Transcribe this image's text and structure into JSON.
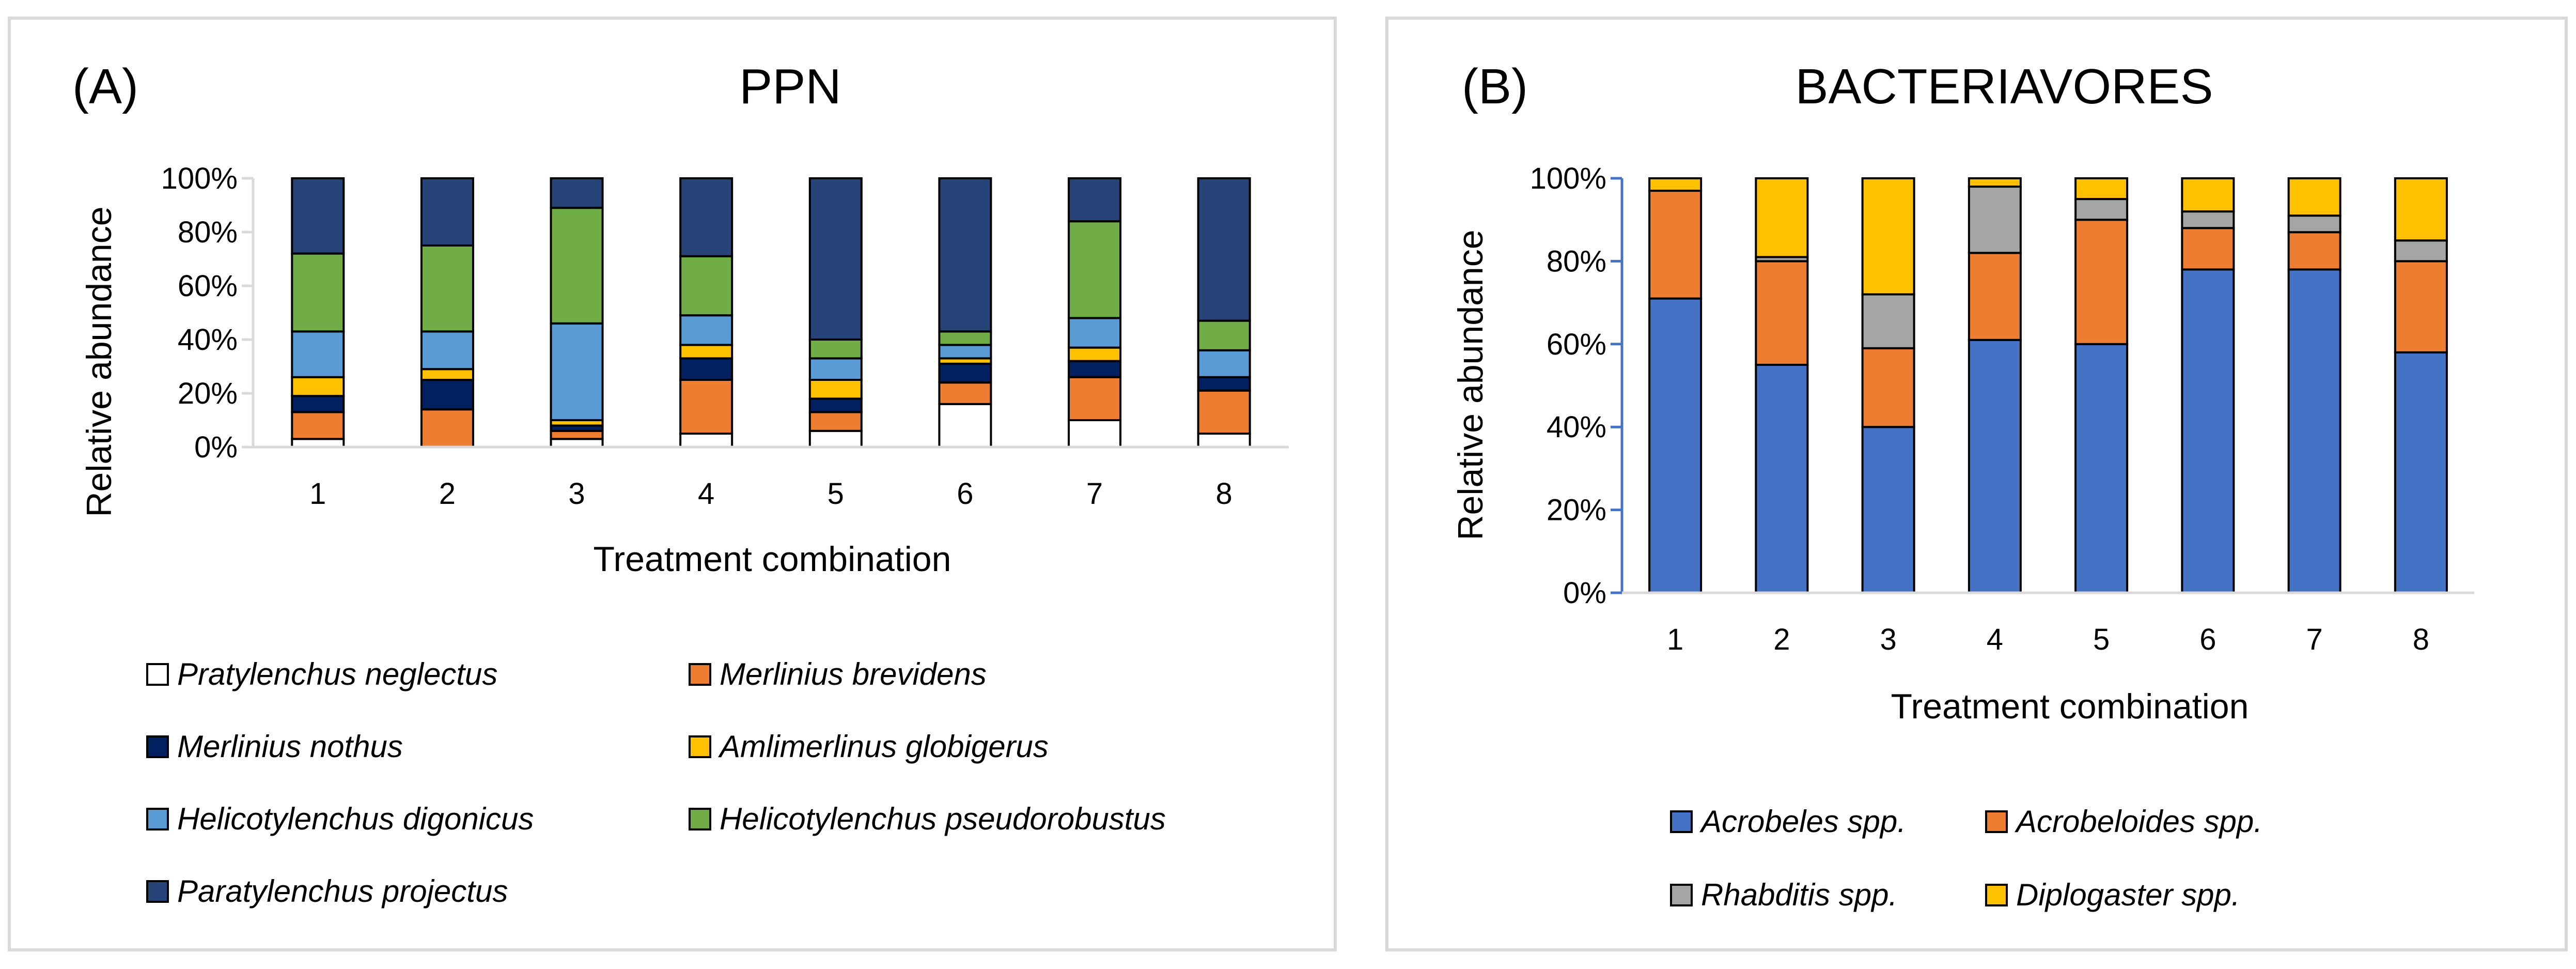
{
  "chart_data": [
    {
      "type": "bar",
      "stacked": true,
      "panel_label": "(A)",
      "title": "PPN",
      "xlabel": "Treatment combination",
      "ylabel": "Relative abundance",
      "ylim": [
        0,
        100
      ],
      "yticks": [
        "0%",
        "20%",
        "40%",
        "60%",
        "80%",
        "100%"
      ],
      "categories": [
        "1",
        "2",
        "3",
        "4",
        "5",
        "6",
        "7",
        "8"
      ],
      "legend_position": "bottom",
      "series": [
        {
          "name": "Pratylenchus neglectus",
          "color": "#ffffff",
          "values": [
            3,
            0,
            3,
            5,
            6,
            16,
            10,
            5
          ]
        },
        {
          "name": "Merlinius brevidens",
          "color": "#ed7d31",
          "values": [
            10,
            14,
            3,
            20,
            7,
            8,
            16,
            16
          ]
        },
        {
          "name": "Merlinius nothus",
          "color": "#002060",
          "values": [
            6,
            11,
            2,
            8,
            5,
            7,
            6,
            5
          ]
        },
        {
          "name": "Amlimerlinus globigerus",
          "color": "#ffc000",
          "values": [
            7,
            4,
            2,
            5,
            7,
            2,
            5,
            0
          ]
        },
        {
          "name": "Helicotylenchus digonicus",
          "color": "#5b9bd5",
          "values": [
            17,
            14,
            36,
            11,
            8,
            5,
            11,
            10
          ]
        },
        {
          "name": "Helicotylenchus pseudorobustus",
          "color": "#70ad47",
          "values": [
            29,
            32,
            43,
            22,
            7,
            5,
            36,
            11
          ]
        },
        {
          "name": "Paratylenchus projectus",
          "color": "#264478",
          "values": [
            28,
            25,
            11,
            29,
            60,
            57,
            16,
            53
          ]
        }
      ]
    },
    {
      "type": "bar",
      "stacked": true,
      "panel_label": "(B)",
      "title": "BACTERIAVORES",
      "xlabel": "Treatment combination",
      "ylabel": "Relative abundance",
      "ylim": [
        0,
        100
      ],
      "yticks": [
        "0%",
        "20%",
        "40%",
        "60%",
        "80%",
        "100%"
      ],
      "categories": [
        "1",
        "2",
        "3",
        "4",
        "5",
        "6",
        "7",
        "8"
      ],
      "legend_position": "bottom",
      "series": [
        {
          "name": "Acrobeles spp.",
          "color": "#4472c4",
          "values": [
            71,
            55,
            40,
            61,
            60,
            78,
            78,
            58
          ]
        },
        {
          "name": "Acrobeloides spp.",
          "color": "#ed7d31",
          "values": [
            26,
            25,
            19,
            21,
            30,
            10,
            9,
            22
          ]
        },
        {
          "name": "Rhabditis spp.",
          "color": "#a5a5a5",
          "values": [
            0,
            1,
            13,
            16,
            5,
            4,
            4,
            5
          ]
        },
        {
          "name": "Diplogaster spp.",
          "color": "#ffc000",
          "values": [
            3,
            19,
            28,
            2,
            5,
            8,
            9,
            15
          ]
        }
      ]
    }
  ]
}
